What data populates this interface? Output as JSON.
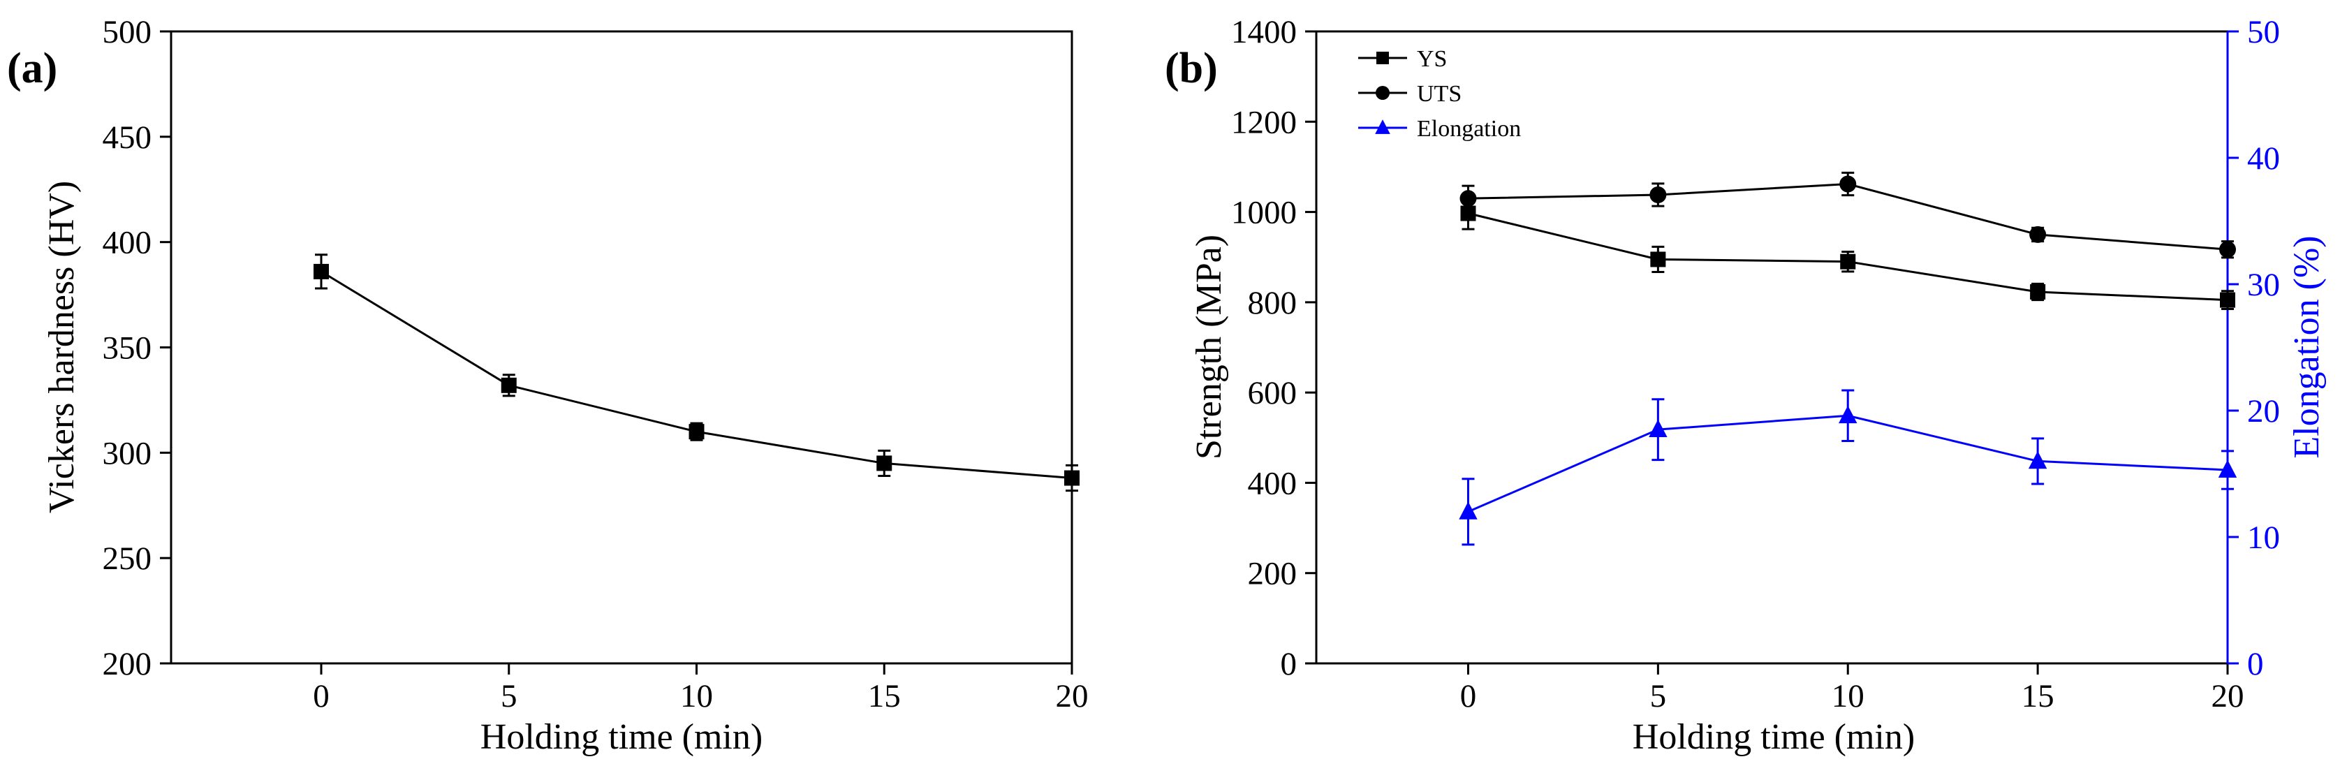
{
  "chart_data": [
    {
      "panel_label": "(a)",
      "type": "line",
      "xlabel": "Holding time (min)",
      "ylabel": "Vickers hardness (HV)",
      "xlim": [
        -4,
        20
      ],
      "ylim": [
        200,
        500
      ],
      "x_ticks": [
        0,
        5,
        10,
        15,
        20
      ],
      "y_ticks": [
        200,
        250,
        300,
        350,
        400,
        450,
        500
      ],
      "grid": false,
      "series": [
        {
          "marker": "square",
          "color": "#000000",
          "x": [
            0,
            5,
            10,
            15,
            20
          ],
          "values": [
            386,
            332,
            310,
            295,
            288
          ],
          "errors": [
            8,
            5,
            4,
            6,
            6
          ]
        }
      ]
    },
    {
      "panel_label": "(b)",
      "type": "line",
      "xlabel": "Holding time (min)",
      "ylabel": "Strength (MPa)",
      "y2label": "Elongation (%)",
      "xlim": [
        -4,
        20
      ],
      "ylim": [
        0,
        1400
      ],
      "y2lim": [
        0,
        50
      ],
      "x_ticks": [
        0,
        5,
        10,
        15,
        20
      ],
      "y_ticks": [
        0,
        200,
        400,
        600,
        800,
        1000,
        1200,
        1400
      ],
      "y2_ticks": [
        0,
        10,
        20,
        30,
        40,
        50
      ],
      "grid": false,
      "legend_position": "top-left",
      "accent_color": "#0000ff",
      "series": [
        {
          "name": "YS",
          "axis": "left",
          "marker": "square",
          "color": "#000000",
          "x": [
            0,
            5,
            10,
            15,
            20
          ],
          "values": [
            997,
            895,
            890,
            823,
            805
          ],
          "errors": [
            35,
            28,
            22,
            18,
            20
          ]
        },
        {
          "name": "UTS",
          "axis": "left",
          "marker": "circle",
          "color": "#000000",
          "x": [
            0,
            5,
            10,
            15,
            20
          ],
          "values": [
            1030,
            1038,
            1062,
            950,
            917
          ],
          "errors": [
            28,
            25,
            25,
            15,
            18
          ]
        },
        {
          "name": "Elongation",
          "axis": "right",
          "marker": "triangle",
          "color": "#0000ff",
          "x": [
            0,
            5,
            10,
            15,
            20
          ],
          "values": [
            12.0,
            18.5,
            19.6,
            16.0,
            15.3
          ],
          "errors": [
            2.6,
            2.4,
            2.0,
            1.8,
            1.5
          ]
        }
      ]
    }
  ]
}
